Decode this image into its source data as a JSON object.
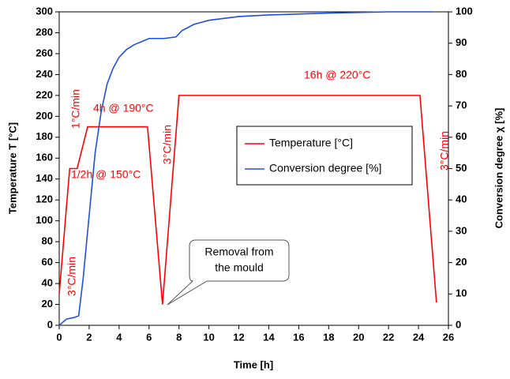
{
  "chart_data": {
    "type": "line",
    "x_label": "Time [h]",
    "y_label": "Temperature T [°C]",
    "y2_label": "Conversion degree χ [%]",
    "xlim": [
      0,
      26
    ],
    "xticks": [
      0,
      2,
      4,
      6,
      8,
      10,
      12,
      14,
      16,
      18,
      20,
      22,
      24,
      26
    ],
    "ylim": [
      0,
      300
    ],
    "yticks": [
      0,
      20,
      40,
      60,
      80,
      100,
      120,
      140,
      160,
      180,
      200,
      220,
      240,
      260,
      280,
      300
    ],
    "y2lim": [
      0,
      100
    ],
    "y2ticks": [
      0,
      10,
      20,
      30,
      40,
      50,
      60,
      70,
      80,
      90,
      100
    ],
    "series": [
      {
        "name": "Temperature [°C]",
        "color": "#ff0000",
        "x": [
          0,
          0.7,
          1.2,
          1.9,
          5.9,
          6.9,
          8.0,
          24.1,
          25.2
        ],
        "values": [
          30,
          150,
          150,
          190,
          190,
          20,
          220,
          220,
          22
        ]
      },
      {
        "name": "Conversion degree [%]",
        "color": "#1f4fe0",
        "axis": "y2",
        "x": [
          0,
          0.5,
          1,
          1.3,
          1.6,
          2,
          2.4,
          2.8,
          3.2,
          3.6,
          4,
          4.5,
          5,
          5.5,
          6,
          7,
          7.8,
          8.2,
          9,
          10,
          12,
          14,
          18,
          22,
          25
        ],
        "values": [
          0,
          2,
          2.5,
          3,
          15,
          35,
          55,
          68,
          77,
          82,
          85.5,
          88,
          89.5,
          90.5,
          91.5,
          91.5,
          92,
          94,
          96,
          97.3,
          98.5,
          99,
          99.6,
          100,
          100
        ]
      }
    ],
    "annotations": [
      "1°C/min",
      "3°C/min",
      "1/2h @ 150°C",
      "4h @ 190°C",
      "3°C/min",
      "16h @ 220°C",
      "3°C/min"
    ],
    "callout": [
      "Removal from",
      "the mould"
    ]
  }
}
